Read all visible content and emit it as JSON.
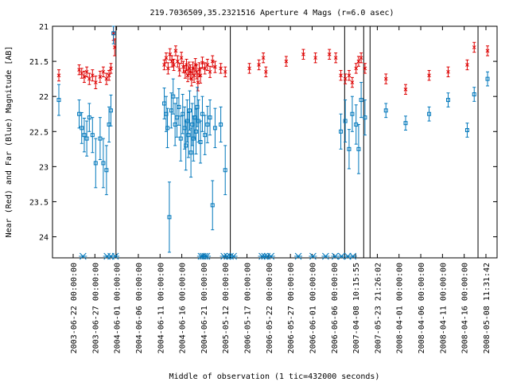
{
  "chart_data": {
    "type": "scatter",
    "title": "219.7036509,35.2321516   Aperture 4 Mags (r=6.0 asec)",
    "xlabel": "Middle of observation (1 tic=432000 seconds)",
    "ylabel": "Near (Red) and Far (Blue) Magnitude [AB]",
    "ylim": [
      24.3,
      21.0
    ],
    "y_inverted": true,
    "y_ticks": [
      "21",
      "21.5",
      "22",
      "22.5",
      "23",
      "23.5",
      "24"
    ],
    "x_tick_labels": [
      "2003-06-22 00:00:00",
      "2003-06-27 00:00:00",
      "2004-06-01 00:00:00",
      "2004-06-06 00:00:00",
      "2004-06-11 00:00:00",
      "2004-06-16 00:00:00",
      "2004-06-21 00:00:00",
      "2005-05-12 00:00:00",
      "2006-05-17 00:00:00",
      "2006-05-22 00:00:00",
      "2006-05-27 00:00:00",
      "2006-06-01 00:00:00",
      "2006-06-06 00:00:00",
      "2007-04-08 10:15:55",
      "2007-05-23 21:26:02",
      "2008-04-01 00:00:00",
      "2008-04-06 00:00:00",
      "2008-04-11 00:00:00",
      "2008-04-16 00:00:00",
      "2008-05-08 11:31:42"
    ],
    "series": [
      {
        "name": "Near (Red)",
        "color": "#dd0000",
        "marker": "x",
        "points": [
          {
            "t": 0.0,
            "mag": 21.7,
            "err": 0.08
          },
          {
            "t": 3.2,
            "mag": 21.62,
            "err": 0.07
          },
          {
            "t": 3.6,
            "mag": 21.67,
            "err": 0.07
          },
          {
            "t": 4.0,
            "mag": 21.72,
            "err": 0.08
          },
          {
            "t": 4.4,
            "mag": 21.65,
            "err": 0.07
          },
          {
            "t": 4.8,
            "mag": 21.75,
            "err": 0.08
          },
          {
            "t": 5.3,
            "mag": 21.7,
            "err": 0.08
          },
          {
            "t": 5.8,
            "mag": 21.8,
            "err": 0.09
          },
          {
            "t": 6.5,
            "mag": 21.72,
            "err": 0.08
          },
          {
            "t": 7.0,
            "mag": 21.65,
            "err": 0.07
          },
          {
            "t": 7.5,
            "mag": 21.75,
            "err": 0.08
          },
          {
            "t": 7.9,
            "mag": 21.7,
            "err": 0.07
          },
          {
            "t": 8.2,
            "mag": 21.6,
            "err": 0.07
          },
          {
            "t": 8.6,
            "mag": 21.1,
            "err": 0.1
          },
          {
            "t": 8.8,
            "mag": 21.3,
            "err": 0.12
          },
          {
            "t": 16.6,
            "mag": 21.55,
            "err": 0.07
          },
          {
            "t": 16.9,
            "mag": 21.45,
            "err": 0.07
          },
          {
            "t": 17.2,
            "mag": 21.6,
            "err": 0.08
          },
          {
            "t": 17.5,
            "mag": 21.4,
            "err": 0.08
          },
          {
            "t": 17.8,
            "mag": 21.5,
            "err": 0.08
          },
          {
            "t": 18.1,
            "mag": 21.55,
            "err": 0.08
          },
          {
            "t": 18.4,
            "mag": 21.35,
            "err": 0.07
          },
          {
            "t": 18.7,
            "mag": 21.5,
            "err": 0.08
          },
          {
            "t": 19.0,
            "mag": 21.62,
            "err": 0.09
          },
          {
            "t": 19.3,
            "mag": 21.45,
            "err": 0.08
          },
          {
            "t": 19.6,
            "mag": 21.58,
            "err": 0.08
          },
          {
            "t": 19.9,
            "mag": 21.65,
            "err": 0.09
          },
          {
            "t": 20.1,
            "mag": 21.55,
            "err": 0.08
          },
          {
            "t": 20.3,
            "mag": 21.7,
            "err": 0.09
          },
          {
            "t": 20.5,
            "mag": 21.6,
            "err": 0.09
          },
          {
            "t": 20.7,
            "mag": 21.65,
            "err": 0.1
          },
          {
            "t": 20.9,
            "mag": 21.75,
            "err": 0.1
          },
          {
            "t": 21.1,
            "mag": 21.6,
            "err": 0.09
          },
          {
            "t": 21.3,
            "mag": 21.7,
            "err": 0.1
          },
          {
            "t": 21.5,
            "mag": 21.55,
            "err": 0.09
          },
          {
            "t": 21.7,
            "mag": 21.65,
            "err": 0.1
          },
          {
            "t": 21.9,
            "mag": 21.8,
            "err": 0.12
          },
          {
            "t": 22.1,
            "mag": 21.62,
            "err": 0.1
          },
          {
            "t": 22.3,
            "mag": 21.7,
            "err": 0.11
          },
          {
            "t": 22.6,
            "mag": 21.52,
            "err": 0.08
          },
          {
            "t": 23.0,
            "mag": 21.6,
            "err": 0.08
          },
          {
            "t": 23.4,
            "mag": 21.55,
            "err": 0.08
          },
          {
            "t": 23.8,
            "mag": 21.65,
            "err": 0.08
          },
          {
            "t": 24.2,
            "mag": 21.5,
            "err": 0.08
          },
          {
            "t": 24.6,
            "mag": 21.58,
            "err": 0.08
          },
          {
            "t": 25.5,
            "mag": 21.6,
            "err": 0.07
          },
          {
            "t": 26.2,
            "mag": 21.65,
            "err": 0.07
          },
          {
            "t": 30.0,
            "mag": 21.6,
            "err": 0.07
          },
          {
            "t": 31.5,
            "mag": 21.55,
            "err": 0.07
          },
          {
            "t": 32.2,
            "mag": 21.45,
            "err": 0.07
          },
          {
            "t": 32.6,
            "mag": 21.65,
            "err": 0.07
          },
          {
            "t": 35.8,
            "mag": 21.5,
            "err": 0.07
          },
          {
            "t": 38.5,
            "mag": 21.4,
            "err": 0.07
          },
          {
            "t": 40.4,
            "mag": 21.45,
            "err": 0.07
          },
          {
            "t": 42.6,
            "mag": 21.4,
            "err": 0.07
          },
          {
            "t": 43.6,
            "mag": 21.45,
            "err": 0.07
          },
          {
            "t": 44.4,
            "mag": 21.7,
            "err": 0.07
          },
          {
            "t": 45.1,
            "mag": 21.75,
            "err": 0.07
          },
          {
            "t": 45.7,
            "mag": 21.7,
            "err": 0.07
          },
          {
            "t": 46.2,
            "mag": 21.8,
            "err": 0.07
          },
          {
            "t": 46.8,
            "mag": 21.6,
            "err": 0.07
          },
          {
            "t": 47.2,
            "mag": 21.5,
            "err": 0.07
          },
          {
            "t": 47.6,
            "mag": 21.45,
            "err": 0.07
          },
          {
            "t": 48.2,
            "mag": 21.6,
            "err": 0.07
          },
          {
            "t": 51.5,
            "mag": 21.75,
            "err": 0.07
          },
          {
            "t": 54.6,
            "mag": 21.9,
            "err": 0.07
          },
          {
            "t": 58.3,
            "mag": 21.7,
            "err": 0.07
          },
          {
            "t": 61.3,
            "mag": 21.65,
            "err": 0.07
          },
          {
            "t": 64.3,
            "mag": 21.55,
            "err": 0.07
          },
          {
            "t": 65.4,
            "mag": 21.3,
            "err": 0.07
          },
          {
            "t": 67.5,
            "mag": 21.35,
            "err": 0.07
          }
        ]
      },
      {
        "name": "Far (Blue)",
        "color": "#0077bb",
        "marker": "square",
        "points": [
          {
            "t": 0.0,
            "mag": 22.05,
            "err": 0.22
          },
          {
            "t": 3.2,
            "mag": 22.25,
            "err": 0.2
          },
          {
            "t": 3.6,
            "mag": 22.45,
            "err": 0.22
          },
          {
            "t": 4.0,
            "mag": 22.55,
            "err": 0.24
          },
          {
            "t": 4.4,
            "mag": 22.6,
            "err": 0.25
          },
          {
            "t": 4.8,
            "mag": 22.3,
            "err": 0.2
          },
          {
            "t": 5.3,
            "mag": 22.55,
            "err": 0.25
          },
          {
            "t": 5.8,
            "mag": 22.95,
            "err": 0.35
          },
          {
            "t": 6.5,
            "mag": 22.6,
            "err": 0.3
          },
          {
            "t": 7.0,
            "mag": 22.95,
            "err": 0.35
          },
          {
            "t": 7.5,
            "mag": 23.05,
            "err": 0.35
          },
          {
            "t": 7.9,
            "mag": 22.4,
            "err": 0.25
          },
          {
            "t": 8.2,
            "mag": 22.2,
            "err": 0.22
          },
          {
            "t": 8.6,
            "mag": 21.1,
            "err": 0.15
          },
          {
            "t": 16.6,
            "mag": 22.1,
            "err": 0.22
          },
          {
            "t": 16.9,
            "mag": 22.25,
            "err": 0.25
          },
          {
            "t": 17.1,
            "mag": 22.45,
            "err": 0.28
          },
          {
            "t": 17.4,
            "mag": 23.72,
            "err": 0.5
          },
          {
            "t": 17.7,
            "mag": 22.2,
            "err": 0.25
          },
          {
            "t": 18.0,
            "mag": 22.0,
            "err": 0.25
          },
          {
            "t": 18.3,
            "mag": 22.4,
            "err": 0.3
          },
          {
            "t": 18.6,
            "mag": 22.3,
            "err": 0.28
          },
          {
            "t": 18.9,
            "mag": 22.15,
            "err": 0.26
          },
          {
            "t": 19.2,
            "mag": 22.6,
            "err": 0.32
          },
          {
            "t": 19.5,
            "mag": 22.25,
            "err": 0.28
          },
          {
            "t": 19.8,
            "mag": 22.45,
            "err": 0.3
          },
          {
            "t": 20.0,
            "mag": 22.7,
            "err": 0.35
          },
          {
            "t": 20.2,
            "mag": 22.35,
            "err": 0.3
          },
          {
            "t": 20.4,
            "mag": 22.55,
            "err": 0.32
          },
          {
            "t": 20.6,
            "mag": 22.2,
            "err": 0.28
          },
          {
            "t": 20.8,
            "mag": 22.8,
            "err": 0.35
          },
          {
            "t": 21.0,
            "mag": 22.4,
            "err": 0.3
          },
          {
            "t": 21.2,
            "mag": 22.6,
            "err": 0.32
          },
          {
            "t": 21.4,
            "mag": 22.3,
            "err": 0.3
          },
          {
            "t": 21.6,
            "mag": 22.5,
            "err": 0.32
          },
          {
            "t": 21.8,
            "mag": 22.15,
            "err": 0.28
          },
          {
            "t": 22.0,
            "mag": 22.35,
            "err": 0.3
          },
          {
            "t": 22.3,
            "mag": 22.65,
            "err": 0.3
          },
          {
            "t": 22.6,
            "mag": 22.25,
            "err": 0.25
          },
          {
            "t": 23.0,
            "mag": 22.55,
            "err": 0.28
          },
          {
            "t": 23.4,
            "mag": 22.4,
            "err": 0.26
          },
          {
            "t": 23.8,
            "mag": 22.3,
            "err": 0.25
          },
          {
            "t": 24.2,
            "mag": 23.55,
            "err": 0.35
          },
          {
            "t": 24.6,
            "mag": 22.45,
            "err": 0.28
          },
          {
            "t": 25.5,
            "mag": 22.4,
            "err": 0.25
          },
          {
            "t": 26.2,
            "mag": 23.05,
            "err": 0.35
          },
          {
            "t": 44.4,
            "mag": 22.5,
            "err": 0.25
          },
          {
            "t": 45.1,
            "mag": 22.35,
            "err": 0.3
          },
          {
            "t": 45.7,
            "mag": 22.75,
            "err": 0.28
          },
          {
            "t": 46.2,
            "mag": 22.25,
            "err": 0.25
          },
          {
            "t": 46.8,
            "mag": 22.4,
            "err": 0.28
          },
          {
            "t": 47.2,
            "mag": 22.75,
            "err": 0.35
          },
          {
            "t": 47.6,
            "mag": 22.05,
            "err": 0.25
          },
          {
            "t": 48.2,
            "mag": 22.3,
            "err": 0.25
          },
          {
            "t": 51.5,
            "mag": 22.2,
            "err": 0.1
          },
          {
            "t": 54.6,
            "mag": 22.38,
            "err": 0.1
          },
          {
            "t": 58.3,
            "mag": 22.25,
            "err": 0.1
          },
          {
            "t": 61.3,
            "mag": 22.05,
            "err": 0.1
          },
          {
            "t": 64.3,
            "mag": 22.48,
            "err": 0.1
          },
          {
            "t": 65.4,
            "mag": 21.97,
            "err": 0.1
          },
          {
            "t": 67.5,
            "mag": 21.75,
            "err": 0.1
          }
        ]
      }
    ],
    "upper_limit_markers": {
      "marker": "asterisk",
      "color": "#0077bb",
      "t": [
        3.8,
        7.6,
        8.2,
        8.9,
        22.4,
        22.7,
        23.0,
        23.3,
        26.0,
        26.5,
        27.0,
        27.5,
        32.0,
        32.4,
        32.8,
        33.4,
        37.7,
        40.0,
        42.0,
        43.5,
        44.5,
        45.5,
        46.3
      ]
    },
    "separators_t": [
      9.0,
      27.0,
      45.0,
      48.0,
      49.0,
      66.0
    ],
    "x_tick_positions_t": [
      0,
      1,
      2,
      3,
      4,
      5,
      6,
      7,
      8,
      9,
      10,
      11,
      12,
      13,
      14,
      15,
      16,
      17,
      18,
      19
    ],
    "tmin": -1,
    "tmax": 69
  }
}
